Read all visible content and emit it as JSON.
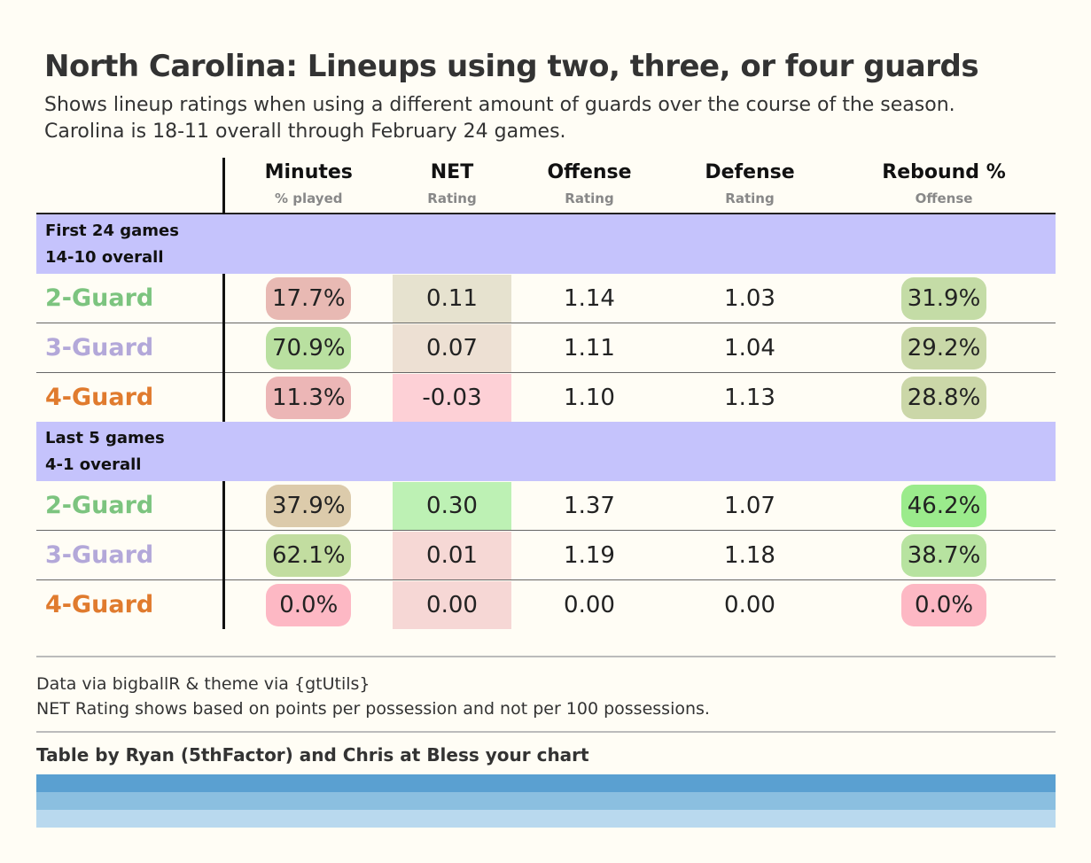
{
  "title": "North Carolina: Lineups using two, three, or four guards",
  "subtitle_line1": "Shows lineup ratings when using a different amount of guards over the course of the season.",
  "subtitle_line2": "Carolina is 18-11 overall through February 24 games.",
  "columns": [
    {
      "label": "Minutes",
      "sub": "% played"
    },
    {
      "label": "NET",
      "sub": "Rating"
    },
    {
      "label": "Offense",
      "sub": "Rating"
    },
    {
      "label": "Defense",
      "sub": "Rating"
    },
    {
      "label": "Rebound %",
      "sub": "Offense"
    }
  ],
  "lineup_colors": {
    "2-Guard": "#7cc47f",
    "3-Guard": "#b3a8d9",
    "4-Guard": "#e07b2e"
  },
  "chart_data": {
    "type": "table",
    "groups": [
      {
        "label_line1": "First 24 games",
        "label_line2": "14-10 overall",
        "rows": [
          {
            "lineup": "2-Guard",
            "minutes": "17.7%",
            "minutes_bg": "#e8b9b3",
            "net": "0.11",
            "net_bg": "#e6e2cf",
            "offense": "1.14",
            "defense": "1.03",
            "rebound": "31.9%",
            "rebound_bg": "#c4dca6"
          },
          {
            "lineup": "3-Guard",
            "minutes": "70.9%",
            "minutes_bg": "#b9e0a0",
            "net": "0.07",
            "net_bg": "#ede0d3",
            "offense": "1.11",
            "defense": "1.04",
            "rebound": "29.2%",
            "rebound_bg": "#c9d8a8"
          },
          {
            "lineup": "4-Guard",
            "minutes": "11.3%",
            "minutes_bg": "#ecb6b6",
            "net": "-0.03",
            "net_bg": "#fdd0d6",
            "offense": "1.10",
            "defense": "1.13",
            "rebound": "28.8%",
            "rebound_bg": "#cbd7a8"
          }
        ]
      },
      {
        "label_line1": "Last 5 games",
        "label_line2": "4-1 overall",
        "rows": [
          {
            "lineup": "2-Guard",
            "minutes": "37.9%",
            "minutes_bg": "#dccbab",
            "net": "0.30",
            "net_bg": "#bdf1b4",
            "offense": "1.37",
            "defense": "1.07",
            "rebound": "46.2%",
            "rebound_bg": "#9beb8c"
          },
          {
            "lineup": "3-Guard",
            "minutes": "62.1%",
            "minutes_bg": "#c2dda0",
            "net": "0.01",
            "net_bg": "#f6d8d5",
            "offense": "1.19",
            "defense": "1.18",
            "rebound": "38.7%",
            "rebound_bg": "#b7e3a0"
          },
          {
            "lineup": "4-Guard",
            "minutes": "0.0%",
            "minutes_bg": "#fdb8c4",
            "net": "0.00",
            "net_bg": "#f6d7d5",
            "offense": "0.00",
            "defense": "0.00",
            "rebound": "0.0%",
            "rebound_bg": "#fdb8c4"
          }
        ]
      }
    ]
  },
  "footer": {
    "source_line1": "Data via bigballR & theme via {gtUtils}",
    "source_line2": "NET Rating shows based on points per possession and not per 100 possessions.",
    "credit": "Table by Ryan (5thFactor) and Chris at Bless your chart",
    "band_colors": [
      "#5aa0d1",
      "#8bbfe0",
      "#b9d9ee"
    ]
  }
}
